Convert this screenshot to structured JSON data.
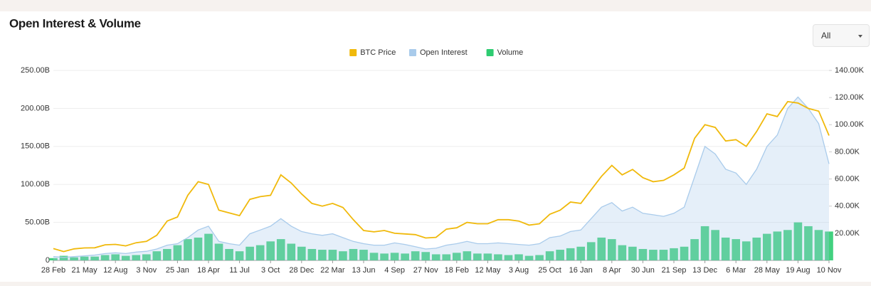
{
  "controls": {
    "range_selector": "All"
  },
  "chart_data": {
    "type": "combo",
    "title": "Open Interest & Volume",
    "legend": "top",
    "grid": true,
    "categories": [
      "28 Feb",
      null,
      null,
      "21 May",
      null,
      null,
      "12 Aug",
      null,
      null,
      "3 Nov",
      null,
      null,
      "25 Jan",
      null,
      null,
      "18 Apr",
      null,
      null,
      "11 Jul",
      null,
      null,
      "3 Oct",
      null,
      null,
      "28 Dec",
      null,
      null,
      "22 Mar",
      null,
      null,
      "13 Jun",
      null,
      null,
      "4 Sep",
      null,
      null,
      "27 Nov",
      null,
      null,
      "18 Feb",
      null,
      null,
      "12 May",
      null,
      null,
      "3 Aug",
      null,
      null,
      "25 Oct",
      null,
      null,
      "16 Jan",
      null,
      null,
      "8 Apr",
      null,
      null,
      "30 Jun",
      null,
      null,
      "21 Sep",
      null,
      null,
      "13 Dec",
      null,
      null,
      "6 Mar",
      null,
      null,
      "28 May",
      null,
      null,
      "19 Aug",
      null,
      null,
      "10 Nov"
    ],
    "ylim": [
      0,
      250
    ],
    "yticks": [
      0,
      {
        "value": 50,
        "label": "50.00B"
      },
      {
        "value": 100,
        "label": "100.00B"
      },
      {
        "value": 150,
        "label": "150.00B"
      },
      {
        "value": 200,
        "label": "200.00B"
      },
      {
        "value": 250,
        "label": "250.00B"
      }
    ],
    "y2lim": [
      0,
      140
    ],
    "y2ticks": [
      {
        "value": 20,
        "label": "20.00K"
      },
      {
        "value": 40,
        "label": "40.00K"
      },
      {
        "value": 60,
        "label": "60.00K"
      },
      {
        "value": 80,
        "label": "80.00K"
      },
      {
        "value": 100,
        "label": "100.00K"
      },
      {
        "value": 120,
        "label": "120.00K"
      },
      {
        "value": 140,
        "label": "140.00K"
      }
    ],
    "series": [
      {
        "name": "BTC Price",
        "color": "#f0b90b",
        "kind": "line",
        "axis": "y2",
        "values": [
          8.7,
          6.5,
          8.5,
          9.2,
          9.3,
          11.5,
          11.8,
          10.7,
          13,
          14,
          18.5,
          29,
          32,
          48,
          58,
          56,
          37,
          35,
          33,
          45,
          47,
          48,
          63,
          57,
          49,
          42,
          40,
          42,
          39,
          30,
          22,
          21,
          22,
          20,
          19.5,
          19,
          16.5,
          17,
          23,
          24,
          28,
          27,
          27,
          30,
          30,
          29,
          26,
          27,
          34,
          37,
          43,
          42,
          52,
          62,
          70,
          63,
          67,
          61,
          58,
          59,
          63,
          68,
          90,
          100,
          98,
          88,
          89,
          84,
          95,
          108,
          106,
          117,
          116,
          112,
          110,
          92
        ]
      },
      {
        "name": "Open Interest",
        "color": "#a9cbeb",
        "kind": "area",
        "values": [
          5,
          4,
          5,
          6,
          7,
          9,
          10,
          9,
          11,
          12,
          15,
          20,
          22,
          30,
          40,
          45,
          25,
          22,
          20,
          35,
          40,
          45,
          55,
          45,
          38,
          35,
          33,
          35,
          30,
          25,
          22,
          20,
          20,
          23,
          21,
          18,
          15,
          16,
          20,
          22,
          25,
          22,
          22,
          23,
          22,
          21,
          20,
          22,
          30,
          32,
          38,
          40,
          55,
          70,
          76,
          65,
          70,
          62,
          60,
          58,
          62,
          70,
          110,
          150,
          140,
          120,
          115,
          100,
          120,
          150,
          165,
          200,
          215,
          200,
          180,
          127
        ]
      },
      {
        "name": "Volume",
        "color": "#2ecc71",
        "kind": "bar",
        "values": [
          3,
          6,
          4,
          5,
          5,
          7,
          8,
          6,
          7,
          8,
          12,
          15,
          20,
          28,
          30,
          35,
          22,
          15,
          12,
          18,
          20,
          25,
          28,
          22,
          18,
          15,
          14,
          14,
          12,
          15,
          14,
          10,
          9,
          10,
          9,
          12,
          11,
          8,
          8,
          10,
          12,
          9,
          9,
          8,
          7,
          8,
          6,
          7,
          12,
          14,
          16,
          18,
          24,
          30,
          28,
          20,
          18,
          15,
          14,
          14,
          16,
          18,
          28,
          45,
          40,
          30,
          28,
          25,
          30,
          35,
          38,
          40,
          50,
          45,
          40,
          38
        ]
      }
    ]
  }
}
